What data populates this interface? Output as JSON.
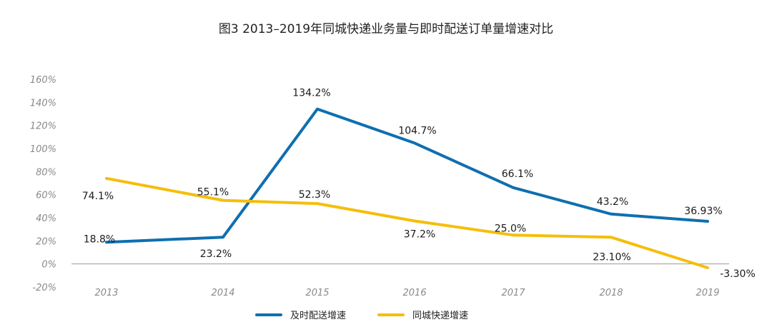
{
  "chart_data": {
    "type": "line",
    "title": "图3 2013–2019年同城快递业务量与即时配送订单量增速对比",
    "categories": [
      "2013",
      "2014",
      "2015",
      "2016",
      "2017",
      "2018",
      "2019"
    ],
    "ylim": [
      -20,
      160
    ],
    "yticks": [
      -20,
      0,
      20,
      40,
      60,
      80,
      100,
      120,
      140,
      160
    ],
    "ytick_labels": [
      "-20%",
      "0%",
      "20%",
      "40%",
      "60%",
      "80%",
      "100%",
      "120%",
      "140%",
      "160%"
    ],
    "grid": false,
    "legend_position": "bottom",
    "series": [
      {
        "name": "及时配送增速",
        "color": "#0E6FB0",
        "values": [
          18.8,
          23.2,
          134.2,
          104.7,
          66.1,
          43.2,
          36.93
        ],
        "labels": [
          "18.8%",
          "23.2%",
          "134.2%",
          "104.7%",
          "66.1%",
          "43.2%",
          "36.93%"
        ]
      },
      {
        "name": "同城快递增速",
        "color": "#F5BE0B",
        "values": [
          74.1,
          55.1,
          52.3,
          37.2,
          25.0,
          23.1,
          -3.3
        ],
        "labels": [
          "74.1%",
          "55.1%",
          "52.3%",
          "37.2%",
          "25.0%",
          "23.10%",
          "-3.30%"
        ]
      }
    ]
  }
}
